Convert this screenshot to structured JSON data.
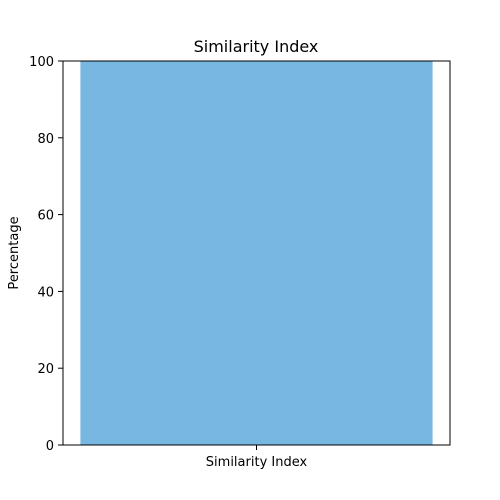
{
  "chart_data": {
    "type": "bar",
    "title": "Similarity Index",
    "xlabel": "",
    "ylabel": "Percentage",
    "categories": [
      "Similarity Index"
    ],
    "values": [
      100
    ],
    "ylim": [
      0,
      100
    ],
    "yticks": [
      0,
      20,
      40,
      60,
      80,
      100
    ],
    "bar_color": "#77b7e1",
    "grid": false
  }
}
